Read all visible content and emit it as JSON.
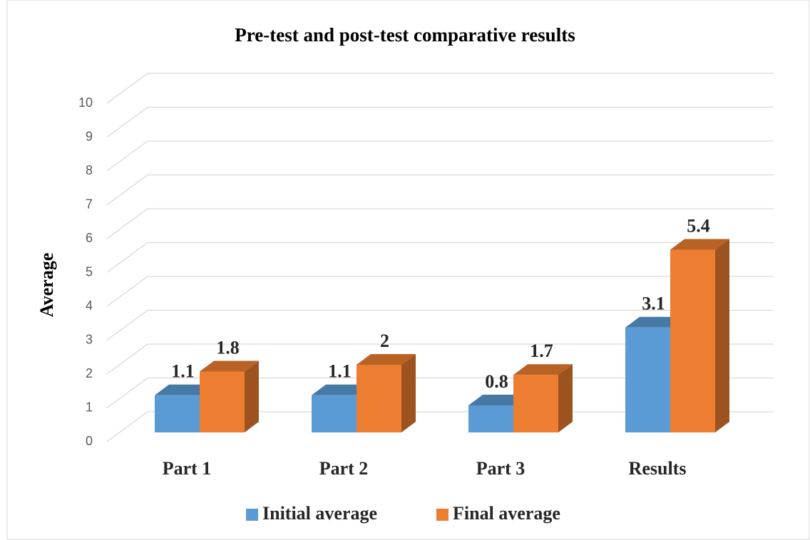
{
  "chart_data": {
    "type": "bar3d",
    "title": "Pre-test and post-test comparative results",
    "y_label": "Average",
    "categories": [
      "Part 1",
      "Part 2",
      "Part 3",
      "Results"
    ],
    "series": [
      {
        "name": "Initial average",
        "color": "#5b9bd5",
        "values": [
          1.1,
          1.1,
          0.8,
          3.1
        ]
      },
      {
        "name": "Final average",
        "color": "#ed7d31",
        "values": [
          1.8,
          2,
          1.7,
          5.4
        ]
      }
    ],
    "ylim": [
      0,
      10
    ],
    "yticks": [
      0,
      1,
      2,
      3,
      4,
      5,
      6,
      7,
      8,
      9,
      10
    ],
    "grid": true,
    "legend": "bottom"
  }
}
